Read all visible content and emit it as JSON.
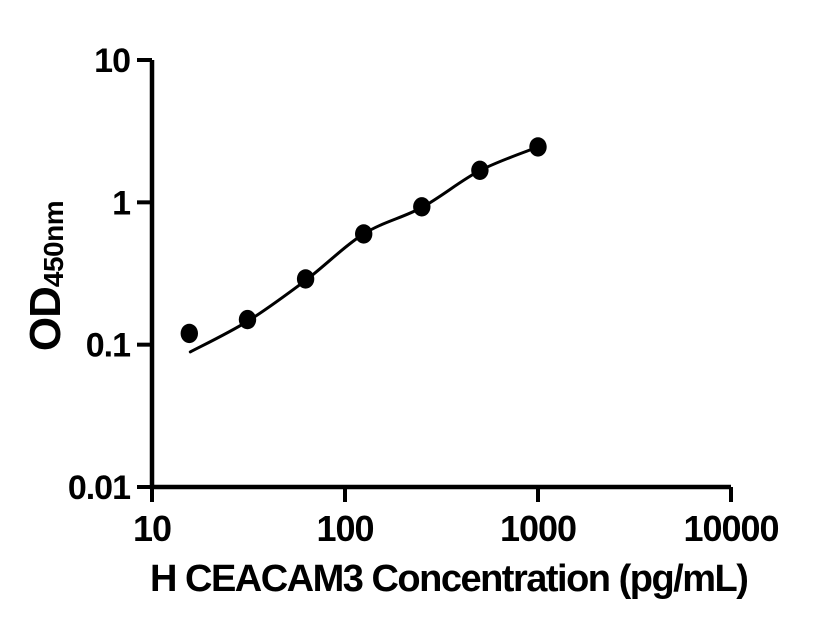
{
  "chart_data": {
    "type": "scatter",
    "title": "",
    "xlabel": "H CEACAM3 Concentration (pg/mL)",
    "ylabel_main": "OD",
    "ylabel_sub": "450nm",
    "x_scale": "log",
    "y_scale": "log",
    "xlim": [
      10,
      10000
    ],
    "ylim": [
      0.01,
      10
    ],
    "x_ticks": [
      10,
      100,
      1000,
      10000
    ],
    "y_ticks": [
      10,
      1,
      0.1,
      0.01
    ],
    "grid": false,
    "legend": "none",
    "background": "#ffffff",
    "axis_color": "#000000",
    "marker": {
      "shape": "circle",
      "color": "#000000"
    },
    "points": [
      {
        "x": 15.6,
        "y": 0.12
      },
      {
        "x": 31.25,
        "y": 0.15
      },
      {
        "x": 62.5,
        "y": 0.29
      },
      {
        "x": 125,
        "y": 0.6
      },
      {
        "x": 250,
        "y": 0.93
      },
      {
        "x": 500,
        "y": 1.68
      },
      {
        "x": 1000,
        "y": 2.45
      }
    ],
    "fit_line": {
      "color": "#000000",
      "x": [
        15.8,
        31.25,
        62.5,
        125,
        250,
        500,
        1000
      ],
      "y": [
        0.089,
        0.146,
        0.283,
        0.6,
        0.92,
        1.67,
        2.45
      ]
    }
  }
}
